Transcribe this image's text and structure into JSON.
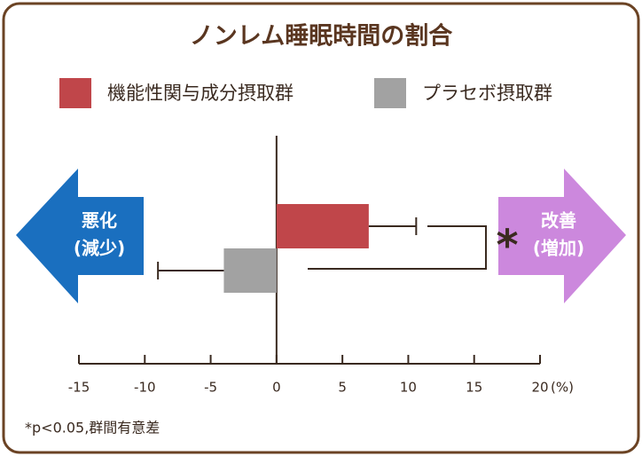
{
  "chart_data": {
    "type": "bar",
    "orientation": "horizontal",
    "title": "ノンレム睡眠時間の割合",
    "series": [
      {
        "name": "機能性関与成分摂取群",
        "color": "#c0464a",
        "values": [
          7
        ],
        "errors": [
          3.6
        ]
      },
      {
        "name": "プラセボ摂取群",
        "color": "#a2a2a2",
        "values": [
          -4
        ],
        "errors": [
          5
        ]
      }
    ],
    "xlim": [
      -15,
      20
    ],
    "xticks": [
      -15,
      -10,
      -5,
      0,
      5,
      10,
      15,
      20
    ],
    "xlabel": "(%)",
    "left_arrow": {
      "line1": "悪化",
      "line2": "(減少)",
      "color": "#1a6fbf"
    },
    "right_arrow": {
      "line1": "改善",
      "line2": "(増加)",
      "color": "#cc88dd"
    },
    "significance": "*",
    "footnote": "*p<0.05,群間有意差"
  }
}
